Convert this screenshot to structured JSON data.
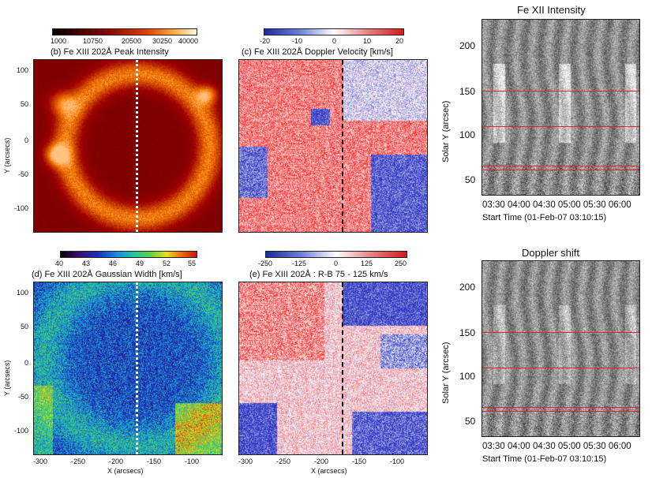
{
  "panels": {
    "b": {
      "title": "(b) Fe XIII 202Å Peak Intensity",
      "colorbar_ticks": [
        "1000",
        "10750",
        "20500",
        "30250",
        "40000"
      ],
      "y_ticks": [
        "100",
        "50",
        "0",
        "-50",
        "-100"
      ],
      "ylabel": "Y (arcsecs)",
      "colormap": "hot-red"
    },
    "c": {
      "title": "(c) Fe XIII 202Å Doppler Velocity [km/s]",
      "colorbar_ticks": [
        "-20",
        "-10",
        "0",
        "10",
        "20"
      ],
      "colormap": "blue-white-red"
    },
    "d": {
      "title": "(d) Fe XIII 202Å Gaussian Width [km/s]",
      "colorbar_ticks": [
        "40",
        "43",
        "46",
        "49",
        "52",
        "55"
      ],
      "y_ticks": [
        "100",
        "50",
        "0",
        "-50",
        "-100"
      ],
      "x_ticks": [
        "-300",
        "-250",
        "-200",
        "-150",
        "-100"
      ],
      "ylabel": "Y (arcsecs)",
      "xlabel": "X (arcsecs)",
      "colormap": "rainbow"
    },
    "e": {
      "title": "(e) Fe XIII 202Å : R-B 75 - 125 km/s",
      "colorbar_ticks": [
        "-250",
        "-125",
        "0",
        "125",
        "250"
      ],
      "x_ticks": [
        "-300",
        "-250",
        "-200",
        "-150",
        "-100"
      ],
      "xlabel": "X (arcsecs)",
      "colormap": "blue-white-red"
    }
  },
  "timeplots": [
    {
      "title": "Fe XII Intensity",
      "y_ticks": [
        "200",
        "150",
        "100",
        "50"
      ],
      "x_ticks": "03:30 04:00 04:30 05:00 05:30 06:00",
      "ylabel": "Solar Y (arcsec)",
      "xlabel": "Start Time (01-Feb-07 03:10:15)",
      "red_lines": [
        150,
        110,
        65,
        62
      ]
    },
    {
      "title": "Doppler shift",
      "y_ticks": [
        "200",
        "150",
        "100",
        "50"
      ],
      "x_ticks": "03:30 04:00 04:30 05:00 05:30 06:00",
      "ylabel": "Solar Y (arcsec)",
      "xlabel": "Start Time (01-Feb-07 03:10:15)",
      "red_lines": [
        150,
        110,
        65,
        62
      ]
    }
  ],
  "colors": {
    "marker_line": "#e8202a"
  }
}
